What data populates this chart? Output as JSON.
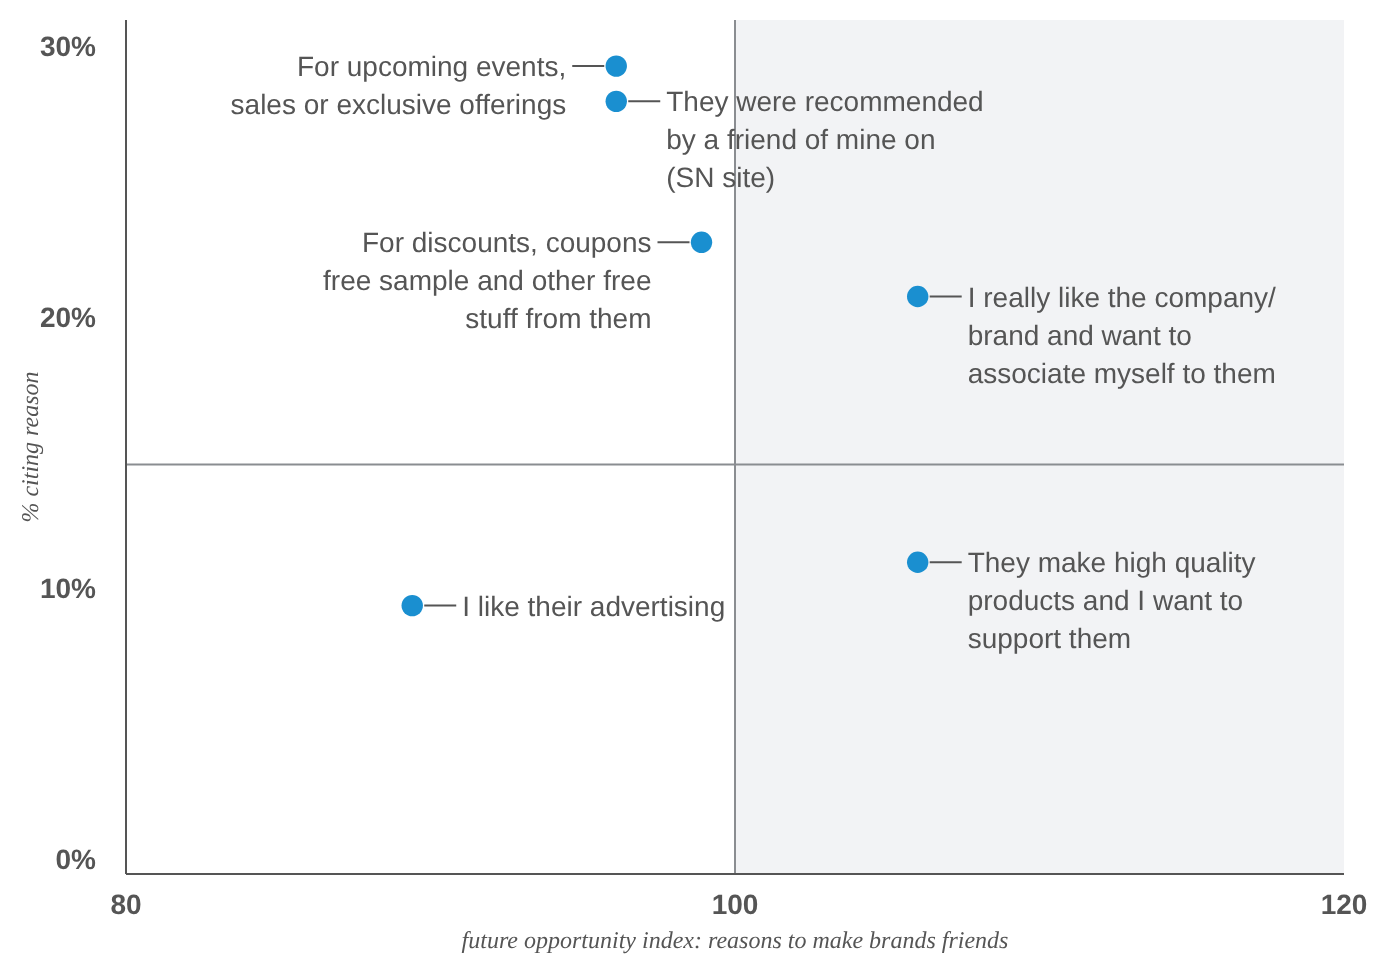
{
  "chart_data": {
    "type": "scatter",
    "xlabel": "future opportunity index: reasons to make brands friends",
    "ylabel": "% citing reason",
    "xlim": [
      80,
      120
    ],
    "xticks": [
      80,
      100,
      120
    ],
    "ylim": [
      -0.5,
      31
    ],
    "yticks": [
      {
        "value": 0,
        "label": "0%"
      },
      {
        "value": 10,
        "label": "10%"
      },
      {
        "value": 20,
        "label": "20%"
      },
      {
        "value": 30,
        "label": "30%"
      }
    ],
    "grid": false,
    "marker": "circle",
    "series": [
      {
        "color": "#1a8fd0",
        "x": [
          96.1,
          96.1,
          98.9,
          106.0,
          89.4,
          106.0
        ],
        "values": [
          29.3,
          28.0,
          22.8,
          20.8,
          9.4,
          11.0
        ]
      }
    ],
    "bands": [
      {
        "axis": "x",
        "from": 100,
        "to": 120,
        "color": "#f1f2f4"
      }
    ],
    "ref_lines": [
      {
        "axis": "x",
        "value": 100,
        "color": "#8a8d91"
      },
      {
        "axis": "y",
        "value": 14.6,
        "color": "#8a8d91"
      }
    ],
    "annotations": [
      {
        "text": "For upcoming events,\nsales or exclusive offerings",
        "x": 96.1,
        "y": 29.3
      },
      {
        "text": "They were recommended\nby a friend of mine on\n(SN site)",
        "x": 96.1,
        "y": 28.0
      },
      {
        "text": "For discounts, coupons\nfree sample and other free\nstuff from them",
        "x": 98.9,
        "y": 22.8
      },
      {
        "text": "I really like the company/\nbrand and want to\nassociate myself to them",
        "x": 106.0,
        "y": 20.8
      },
      {
        "text": "I like their advertising",
        "x": 89.4,
        "y": 9.4
      },
      {
        "text": "They make high quality\nproducts and I want to\nsupport them",
        "x": 106.0,
        "y": 11.0
      }
    ]
  }
}
